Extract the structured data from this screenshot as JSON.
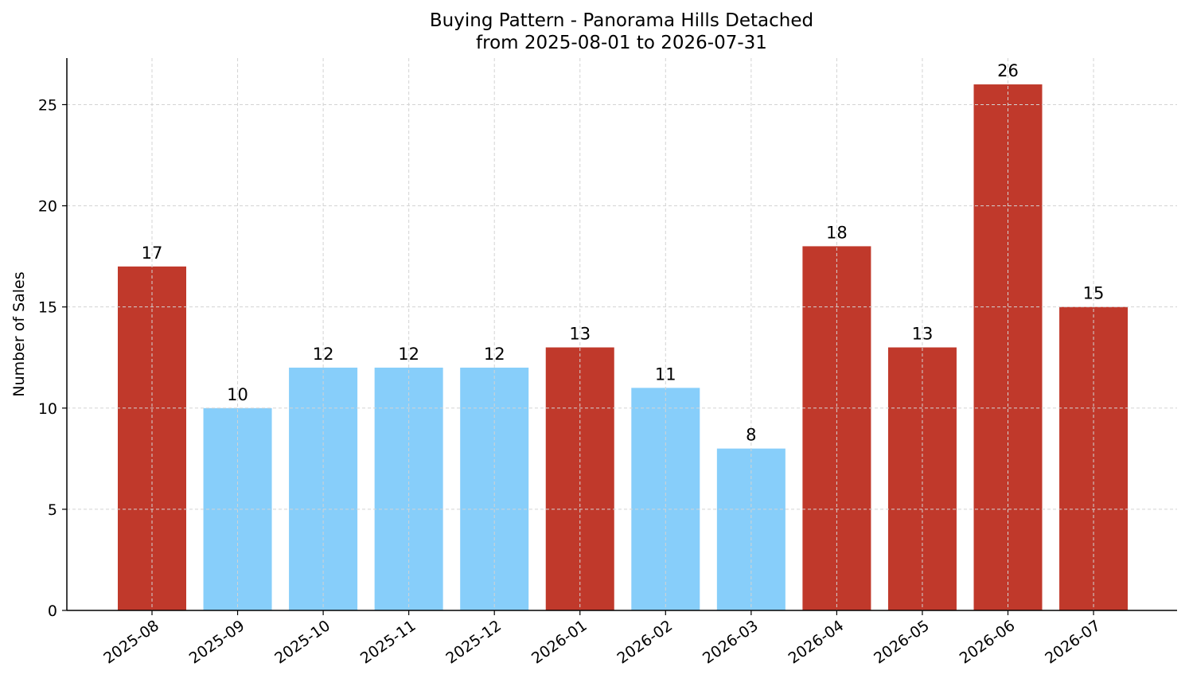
{
  "chart_data": {
    "type": "bar",
    "title": "Buying Pattern - Panorama Hills Detached",
    "subtitle": "from 2025-08-01 to 2026-07-31",
    "xlabel": "",
    "ylabel": "Number of Sales",
    "ylim": [
      0,
      27.3
    ],
    "yticks": [
      0,
      5,
      10,
      15,
      20,
      25
    ],
    "grid": true,
    "categories": [
      "2025-08",
      "2025-09",
      "2025-10",
      "2025-11",
      "2025-12",
      "2026-01",
      "2026-02",
      "2026-03",
      "2026-04",
      "2026-05",
      "2026-06",
      "2026-07"
    ],
    "values": [
      17,
      10,
      12,
      12,
      12,
      13,
      11,
      8,
      18,
      13,
      26,
      15
    ],
    "colors": {
      "high": "#c0392b",
      "low": "#87cefa"
    },
    "bar_colors": [
      "high",
      "low",
      "low",
      "low",
      "low",
      "high",
      "low",
      "low",
      "high",
      "high",
      "high",
      "high"
    ]
  }
}
